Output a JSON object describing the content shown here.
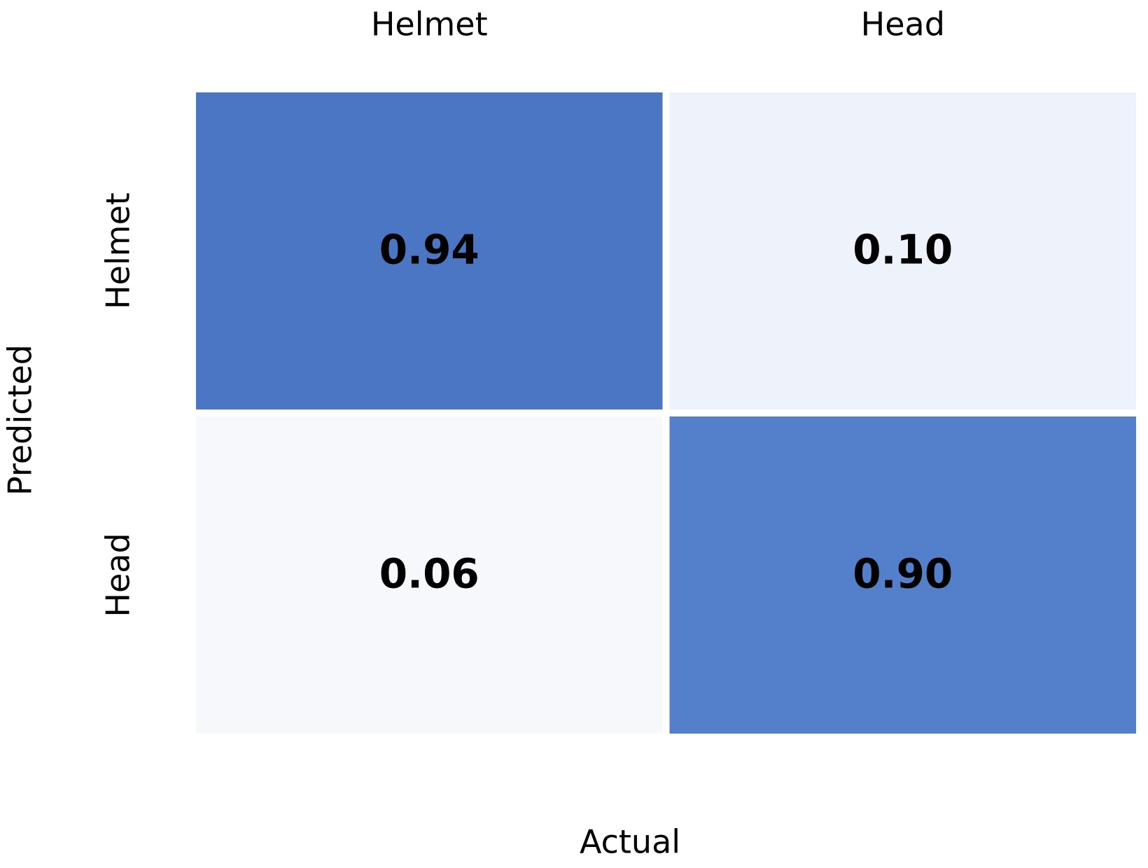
{
  "chart_data": {
    "type": "heatmap",
    "x_categories": [
      "Helmet",
      "Head"
    ],
    "y_categories": [
      "Helmet",
      "Head"
    ],
    "values": [
      [
        0.94,
        0.1
      ],
      [
        0.06,
        0.9
      ]
    ],
    "value_labels": [
      [
        "0.94",
        "0.10"
      ],
      [
        "0.06",
        "0.90"
      ]
    ],
    "colors": [
      [
        "#4a76c4",
        "#eef2fa"
      ],
      [
        "#f6f8fc",
        "#547fca"
      ]
    ],
    "xlabel": "Actual",
    "ylabel": "Predicted"
  }
}
